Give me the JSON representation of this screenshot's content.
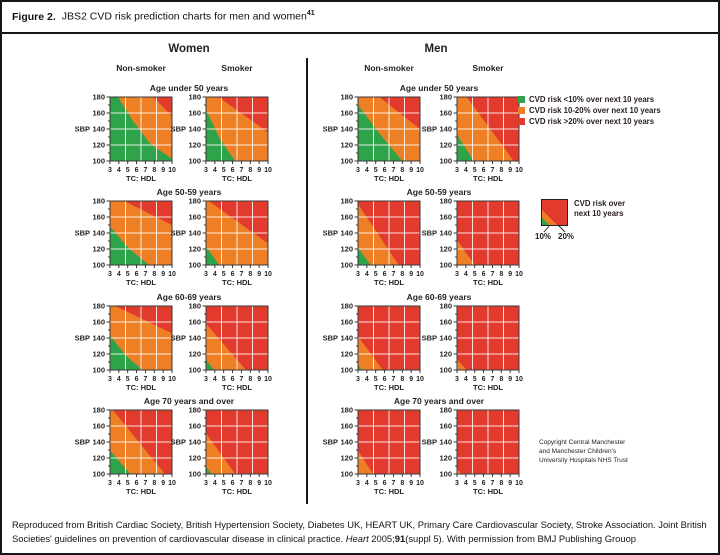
{
  "figure": {
    "label": "Figure 2.",
    "title": "JBS2 CVD risk prediction charts for men and women",
    "title_superscript": "41"
  },
  "groups": [
    {
      "name": "Women"
    },
    {
      "name": "Men"
    }
  ],
  "column_headers": [
    "Non-smoker",
    "Smoker"
  ],
  "age_rows": [
    "Age under 50 years",
    "Age 50-59 years",
    "Age 60-69 years",
    "Age 70 years and over"
  ],
  "colors": {
    "green": "#2fa34a",
    "orange": "#ef7f24",
    "red": "#e23b2e",
    "grid": "#ffffff",
    "axis": "#3a3a3a"
  },
  "legend": {
    "items": [
      {
        "color": "green",
        "label": "CVD risk <10% over next 10 years"
      },
      {
        "color": "orange",
        "label": "CVD risk 10-20% over next 10 years"
      },
      {
        "color": "red",
        "label": "CVD risk >20% over next 10 years"
      }
    ]
  },
  "legend2": {
    "line1": "CVD risk over",
    "line2": "next 10 years",
    "tick1": "10%",
    "tick2": "20%"
  },
  "copyright": {
    "line1": "Copyright Central Manchester",
    "line2": "and Manchester Children's",
    "line3": "University Hospitals NHS Trust"
  },
  "caption": {
    "part1": "Reproduced from British Cardiac Society, British Hypertension Society, Diabetes UK, HEART UK, Primary Care Cardiovascular Society, Stroke Association.  Joint British Societies' guidelines on prevention of cardiovascular disease in clinical practice. ",
    "journal": "Heart",
    "part2": " 2005;",
    "volume": "91",
    "part3": "(suppl 5). With permission from BMJ Publishing Grouop"
  },
  "chart_data": {
    "type": "heatmap",
    "title": "JBS2 CVD risk prediction charts for men and women",
    "xlabel": "TC: HDL",
    "ylabel": "SBP",
    "x_ticks": [
      3,
      4,
      5,
      6,
      7,
      8,
      9,
      10
    ],
    "y_ticks": [
      180,
      160,
      140,
      120,
      100
    ],
    "xlim": [
      3,
      10
    ],
    "ylim": [
      100,
      180
    ],
    "grid": true,
    "bands": {
      "green": "CVD risk <10% over next 10 years",
      "orange": "CVD risk 10-20% over next 10 years",
      "red": "CVD risk >20% over next 10 years"
    },
    "legend_square": {
      "green": [
        [
          0,
          0
        ],
        [
          0,
          0.32
        ],
        [
          0.32,
          0
        ]
      ],
      "red": [
        [
          0,
          0.62
        ],
        [
          0,
          1
        ],
        [
          1,
          1
        ],
        [
          1,
          0
        ],
        [
          0.62,
          0
        ]
      ]
    },
    "charts": [
      {
        "id": "women-nonsmoker-under50",
        "group": 0,
        "col": 0,
        "row": 0,
        "green": [
          [
            3,
            100
          ],
          [
            3,
            180
          ],
          [
            3.9,
            180
          ],
          [
            5.6,
            150
          ],
          [
            7.6,
            121
          ],
          [
            10,
            103
          ],
          [
            10,
            100
          ]
        ],
        "red": [
          [
            7.9,
            180
          ],
          [
            10,
            180
          ],
          [
            10,
            156
          ]
        ]
      },
      {
        "id": "women-smoker-under50",
        "group": 0,
        "col": 1,
        "row": 0,
        "green": [
          [
            3,
            100
          ],
          [
            3,
            164
          ],
          [
            4.6,
            127
          ],
          [
            6.3,
            100
          ]
        ],
        "red": [
          [
            4.4,
            180
          ],
          [
            10,
            180
          ],
          [
            10,
            136
          ]
        ]
      },
      {
        "id": "women-nonsmoker-50-59",
        "group": 0,
        "col": 0,
        "row": 1,
        "green": [
          [
            3,
            100
          ],
          [
            3,
            148
          ],
          [
            5.1,
            121
          ],
          [
            7.4,
            100
          ]
        ],
        "red": [
          [
            4.6,
            180
          ],
          [
            10,
            180
          ],
          [
            10,
            150
          ]
        ]
      },
      {
        "id": "women-smoker-50-59",
        "group": 0,
        "col": 1,
        "row": 1,
        "green": [
          [
            3,
            100
          ],
          [
            3,
            123
          ],
          [
            4.5,
            100
          ]
        ],
        "red": [
          [
            3.3,
            180
          ],
          [
            10,
            180
          ],
          [
            10,
            127
          ]
        ]
      },
      {
        "id": "women-nonsmoker-60-69",
        "group": 0,
        "col": 0,
        "row": 2,
        "green": [
          [
            3,
            100
          ],
          [
            3,
            143
          ],
          [
            4.9,
            117
          ],
          [
            6.7,
            100
          ]
        ],
        "red": [
          [
            3.6,
            180
          ],
          [
            10,
            180
          ],
          [
            10,
            146
          ]
        ]
      },
      {
        "id": "women-smoker-60-69",
        "group": 0,
        "col": 1,
        "row": 2,
        "green": [
          [
            3,
            100
          ],
          [
            3,
            113
          ],
          [
            3.9,
            100
          ]
        ],
        "red": [
          [
            3,
            158
          ],
          [
            3,
            180
          ],
          [
            10,
            180
          ],
          [
            10,
            100
          ],
          [
            7.5,
            100
          ]
        ]
      },
      {
        "id": "women-nonsmoker-70plus",
        "group": 0,
        "col": 0,
        "row": 3,
        "green": [
          [
            3,
            100
          ],
          [
            3,
            129
          ],
          [
            5.3,
            100
          ]
        ],
        "red": [
          [
            3.3,
            180
          ],
          [
            10,
            180
          ],
          [
            10,
            100
          ],
          [
            9.2,
            100
          ]
        ]
      },
      {
        "id": "women-smoker-70plus",
        "group": 0,
        "col": 1,
        "row": 3,
        "green": [
          [
            3,
            100
          ],
          [
            3,
            109
          ],
          [
            3.6,
            100
          ]
        ],
        "red": [
          [
            3,
            151
          ],
          [
            3,
            180
          ],
          [
            10,
            180
          ],
          [
            10,
            100
          ],
          [
            6.3,
            100
          ]
        ]
      },
      {
        "id": "men-nonsmoker-under50",
        "group": 1,
        "col": 0,
        "row": 0,
        "green": [
          [
            3,
            100
          ],
          [
            3,
            170
          ],
          [
            5.6,
            132
          ],
          [
            8,
            100
          ]
        ],
        "red": [
          [
            5.4,
            180
          ],
          [
            10,
            180
          ],
          [
            10,
            140
          ]
        ]
      },
      {
        "id": "men-smoker-under50",
        "group": 1,
        "col": 1,
        "row": 0,
        "green": [
          [
            3,
            100
          ],
          [
            3,
            133
          ],
          [
            4.9,
            100
          ]
        ],
        "red": [
          [
            4.1,
            180
          ],
          [
            10,
            180
          ],
          [
            10,
            100
          ],
          [
            9.4,
            100
          ]
        ]
      },
      {
        "id": "men-nonsmoker-50-59",
        "group": 1,
        "col": 0,
        "row": 1,
        "green": [
          [
            3,
            100
          ],
          [
            3,
            122
          ],
          [
            4.4,
            100
          ]
        ],
        "red": [
          [
            3,
            176
          ],
          [
            3,
            180
          ],
          [
            10,
            180
          ],
          [
            10,
            100
          ],
          [
            7.6,
            100
          ]
        ]
      },
      {
        "id": "men-smoker-50-59",
        "group": 1,
        "col": 1,
        "row": 1,
        "green": null,
        "red": [
          [
            3,
            131
          ],
          [
            3,
            180
          ],
          [
            10,
            180
          ],
          [
            10,
            100
          ],
          [
            5,
            100
          ]
        ]
      },
      {
        "id": "men-nonsmoker-60-69",
        "group": 1,
        "col": 0,
        "row": 2,
        "green": [
          [
            3,
            100
          ],
          [
            3,
            107
          ],
          [
            3.4,
            100
          ]
        ],
        "red": [
          [
            3,
            142
          ],
          [
            3,
            180
          ],
          [
            10,
            180
          ],
          [
            10,
            100
          ],
          [
            5.8,
            100
          ]
        ]
      },
      {
        "id": "men-smoker-60-69",
        "group": 1,
        "col": 1,
        "row": 2,
        "green": null,
        "red": [
          [
            3,
            113
          ],
          [
            3,
            180
          ],
          [
            10,
            180
          ],
          [
            10,
            100
          ],
          [
            4.1,
            100
          ]
        ]
      },
      {
        "id": "men-nonsmoker-70plus",
        "group": 1,
        "col": 0,
        "row": 3,
        "green": null,
        "red": [
          [
            3,
            129
          ],
          [
            3,
            180
          ],
          [
            10,
            180
          ],
          [
            10,
            100
          ],
          [
            4.7,
            100
          ]
        ]
      },
      {
        "id": "men-smoker-70plus",
        "group": 1,
        "col": 1,
        "row": 3,
        "green": null,
        "red": [
          [
            3,
            107
          ],
          [
            3,
            180
          ],
          [
            10,
            180
          ],
          [
            10,
            100
          ],
          [
            3.5,
            100
          ]
        ]
      }
    ]
  }
}
